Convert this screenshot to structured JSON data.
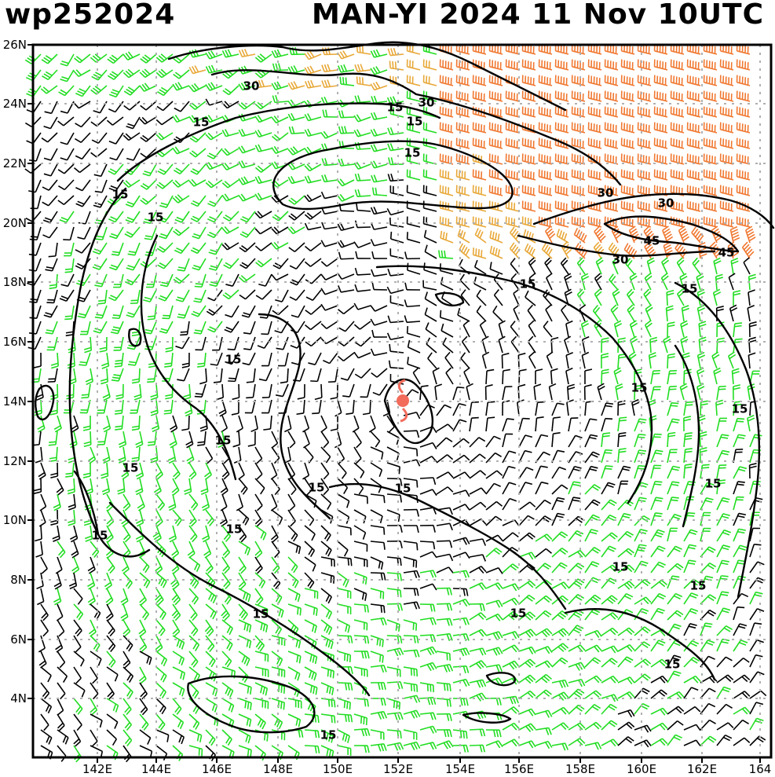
{
  "header": {
    "storm_id": "wp252024",
    "storm_info": "MAN-YI 2024 11 Nov 10UTC"
  },
  "axes": {
    "lat_labels": [
      "26N",
      "24N",
      "22N",
      "20N",
      "18N",
      "16N",
      "14N",
      "12N",
      "10N",
      "8N",
      "6N",
      "4N"
    ],
    "lon_labels": [
      "142E",
      "144E",
      "146E",
      "148E",
      "150E",
      "152E",
      "154E",
      "156E",
      "158E",
      "160E",
      "162E",
      "164"
    ]
  },
  "contour_labels": [
    "30",
    "30",
    "15",
    "15",
    "15",
    "15",
    "15",
    "15",
    "30",
    "30",
    "45",
    "45",
    "30",
    "15",
    "15",
    "15",
    "15",
    "15",
    "15",
    "15",
    "15",
    "15",
    "15",
    "15",
    "15",
    "15",
    "15",
    "15",
    "15",
    "15"
  ],
  "legend_colors": {
    "calm": "#000000",
    "moderate": "#22dd22",
    "strong": "#e8a838",
    "very_strong": "#f07830",
    "storm_center": "#f26b5b",
    "gridline": "#b0b0b0"
  }
}
